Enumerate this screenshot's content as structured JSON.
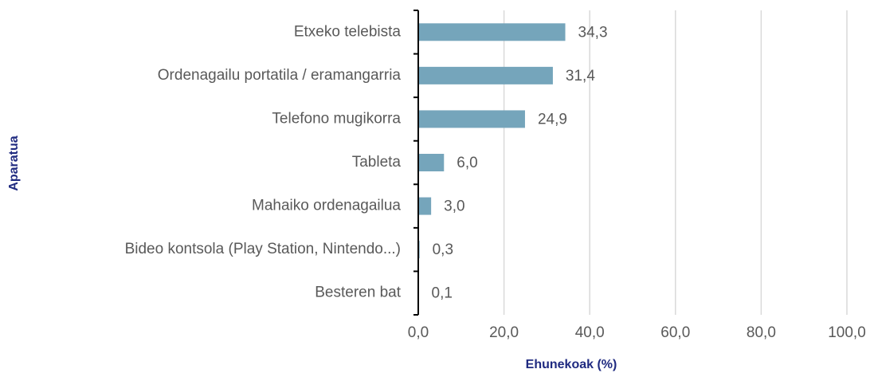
{
  "chart_data": {
    "type": "bar",
    "orientation": "horizontal",
    "x_label": "Ehunekoak (%)",
    "y_label": "Aparatua",
    "categories": [
      "Etxeko telebista",
      "Ordenagailu portatila / eramangarria",
      "Telefono mugikorra",
      "Tableta",
      "Mahaiko ordenagailua",
      "Bideo kontsola (Play Station, Nintendo...)",
      "Besteren bat"
    ],
    "values": [
      34.3,
      31.4,
      24.9,
      6.0,
      3.0,
      0.3,
      0.1
    ],
    "value_labels": [
      "34,3",
      "31,4",
      "24,9",
      "6,0",
      "3,0",
      "0,3",
      "0,1"
    ],
    "color": "#75a5bb",
    "xlim": [
      0,
      100
    ],
    "xticks": [
      {
        "value": 0,
        "label": "0,0"
      },
      {
        "value": 20,
        "label": "20,0"
      },
      {
        "value": 40,
        "label": "40,0"
      },
      {
        "value": 60,
        "label": "60,0"
      },
      {
        "value": 80,
        "label": "80,0"
      },
      {
        "value": 100,
        "label": "100,0"
      }
    ],
    "grid": true
  }
}
